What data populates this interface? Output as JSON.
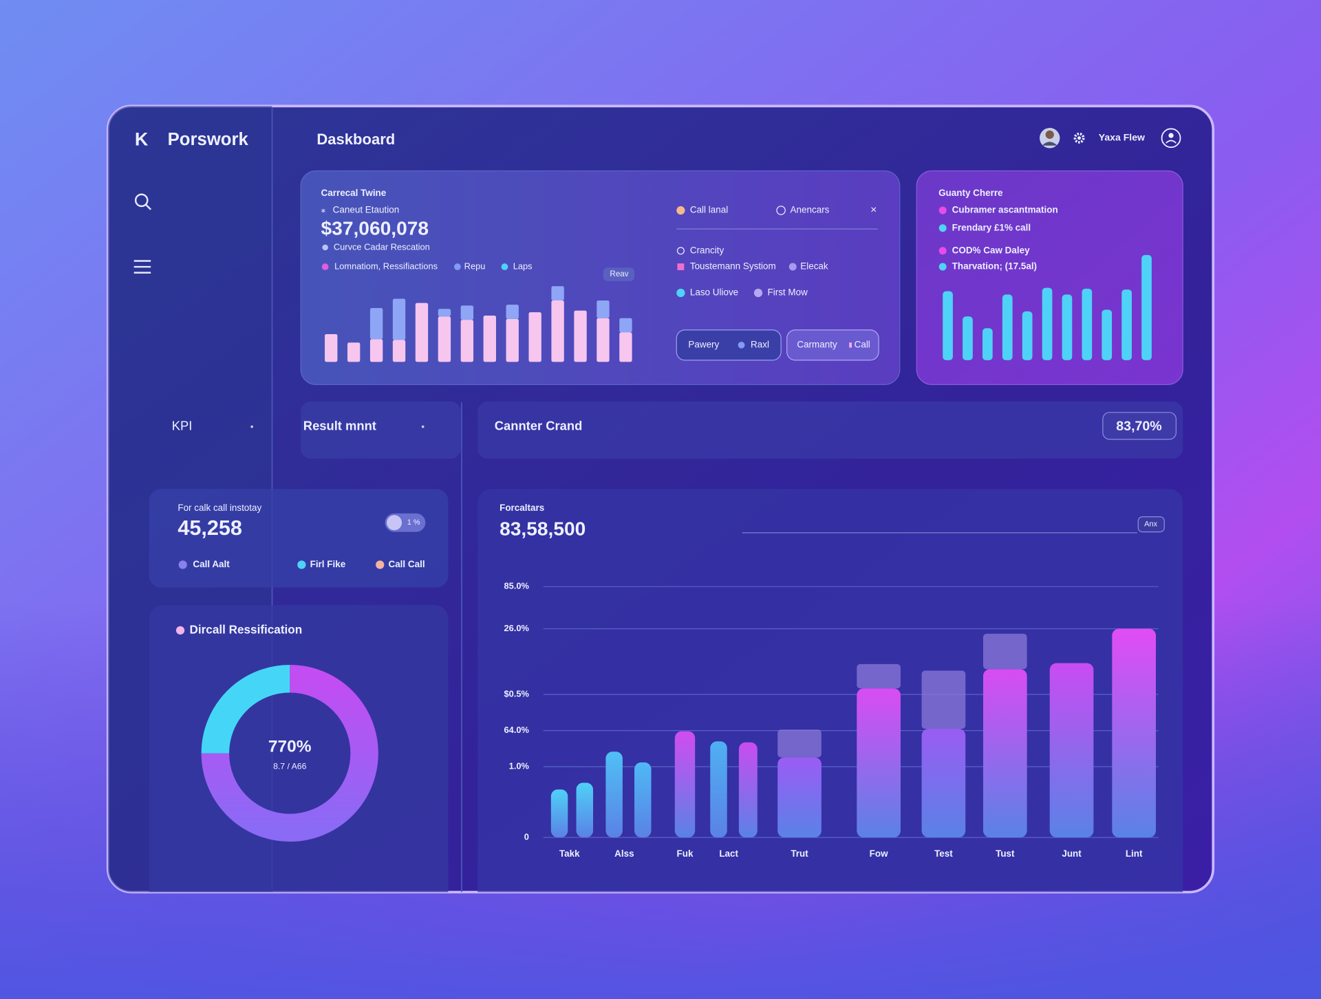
{
  "app": {
    "logo": "K",
    "name": "Porswork"
  },
  "header": {
    "title": "Daskboard",
    "user": "Yaxa Flew"
  },
  "nav": {
    "kpi": "KPI"
  },
  "card_main": {
    "title": "Carrecal Twine",
    "subtitle": "Caneut Etaution",
    "value": "$37,060,078",
    "note": "Curvce Cadar Rescation",
    "legend": [
      "Lomnatiom, Ressifiactions",
      "Repu",
      "Laps"
    ],
    "badge": "Reav",
    "chart": {
      "type": "bar",
      "series": [
        {
          "name": "Lomnatiom, Ressifiactions",
          "color": "#f6c6ef",
          "values": [
            33,
            23,
            27,
            26,
            70,
            54,
            50,
            55,
            51,
            59,
            73,
            61,
            52,
            35
          ]
        },
        {
          "name": "Repu",
          "color": "#8ea6f5",
          "values": [
            null,
            null,
            37,
            49,
            null,
            9,
            17,
            null,
            17,
            null,
            17,
            null,
            21,
            17
          ]
        }
      ]
    }
  },
  "card_filters": {
    "items": [
      "Call lanal",
      "Anencars",
      "Crancity",
      "Toustemann Systiom",
      "Elecak",
      "Laso Uliove",
      "First Mow"
    ],
    "buttons": [
      "Pawery",
      "Raxl",
      "Carmanty",
      "Call"
    ]
  },
  "card_right": {
    "title": "Guanty Cherre",
    "legend": [
      "Cubramer ascantmation",
      "Frendary £1% call",
      "COD% Caw Daley",
      "Tharvation; (17.5al)"
    ],
    "chart": {
      "type": "bar",
      "color": "#4fd2f7",
      "values": [
        82,
        52,
        38,
        78,
        58,
        86,
        78,
        85,
        60,
        84,
        125
      ]
    }
  },
  "tabs": {
    "left": "Result mnnt",
    "right": "Cannter Crand",
    "badge": "83,70%"
  },
  "kpi_card": {
    "title": "For calk call instotay",
    "value": "45,258",
    "toggle": "1 %",
    "legend": [
      "Call Aalt",
      "Firl Fike",
      "Call Call"
    ]
  },
  "donut": {
    "title": "Dircall Ressification",
    "center": "770%",
    "sub": "8.7 / A66",
    "chart": {
      "type": "pie",
      "values": [
        75,
        25
      ],
      "colors": [
        "#c24df2",
        "#45d6f7"
      ]
    }
  },
  "forecast": {
    "title": "Forcaltars",
    "value": "83,58,500",
    "badge": "Anx",
    "chart_data": {
      "type": "bar",
      "ylim": [
        0,
        100
      ],
      "yticks": [
        0,
        {
          "value": 28.2,
          "label": "1.0%"
        },
        {
          "value": 42.6,
          "label": "64.0%"
        },
        {
          "value": 57,
          "label": "$0.5%"
        },
        {
          "value": 83.2,
          "label": "26.0%"
        },
        {
          "value": 100,
          "label": "85.0%"
        }
      ],
      "grid": true,
      "categories": [
        "Takk",
        null,
        "Alss",
        null,
        "Fuk",
        "Lact",
        null,
        "Trut",
        "Fow",
        "Test",
        "Tust",
        "Junt",
        "Lint"
      ],
      "series": [
        {
          "name": "main",
          "colors": [
            "#4fd0f7",
            "#4fd0f7",
            "#4fc0f5",
            "#4fb8f5",
            "#d04cf0",
            "#4fb0f2",
            "#c94cf0",
            "#9b5cf5",
            "#d94cf2",
            "#9a5cf2",
            "#d84cf2",
            "#c94cf2",
            "#e14cf5"
          ],
          "values": [
            19.1,
            21.8,
            34.2,
            29.9,
            42.3,
            38.3,
            37.9,
            31.9,
            59.4,
            43.3,
            67.1,
            69.5,
            83.2
          ]
        },
        {
          "name": "extra",
          "color": "#8a78d8",
          "values": [
            null,
            null,
            null,
            null,
            null,
            null,
            null,
            11.1,
            9.7,
            23.2,
            14.1,
            null,
            null
          ]
        }
      ]
    }
  }
}
